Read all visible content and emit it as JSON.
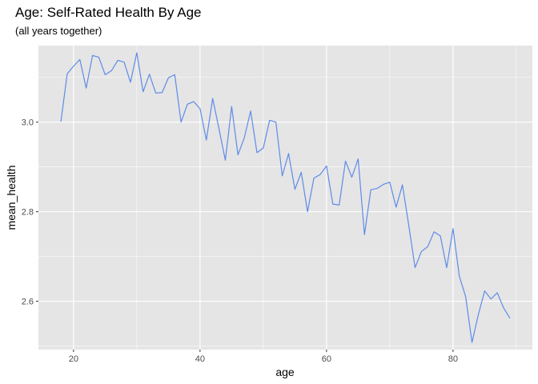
{
  "chart_data": {
    "type": "line",
    "title": "Age: Self-Rated Health By Age",
    "subtitle": "(all years together)",
    "xlabel": "age",
    "ylabel": "mean_health",
    "xlim": [
      14.45,
      92.55
    ],
    "ylim": [
      2.492,
      3.171
    ],
    "x_ticks": [
      20,
      40,
      60,
      80
    ],
    "x_minor_ticks": [
      30,
      50,
      70,
      90
    ],
    "y_ticks": [
      2.6,
      2.8,
      3.0
    ],
    "y_tick_labels": [
      "2.6",
      "2.8",
      "3.0"
    ],
    "y_minor_ticks": [
      2.5,
      2.7,
      2.9,
      3.1
    ],
    "grid": true,
    "legend": "none",
    "colors": {
      "line": "#5d8be8",
      "panel": "#e5e5e5",
      "grid": "#ffffff",
      "tick_text": "#4d4d4d"
    },
    "series": [
      {
        "x": [
          18,
          19,
          20,
          21,
          22,
          23,
          24,
          25,
          26,
          27,
          28,
          29,
          30,
          31,
          32,
          33,
          34,
          35,
          36,
          37,
          38,
          39,
          40,
          41,
          42,
          43,
          44,
          45,
          46,
          47,
          48,
          49,
          50,
          51,
          52,
          53,
          54,
          55,
          56,
          57,
          58,
          59,
          60,
          61,
          62,
          63,
          64,
          65,
          66,
          67,
          68,
          69,
          70,
          71,
          72,
          73,
          74,
          75,
          76,
          77,
          78,
          79,
          80,
          81,
          82,
          83,
          84,
          85,
          86,
          87,
          88,
          89
        ],
        "y": [
          3.001,
          3.108,
          3.125,
          3.14,
          3.076,
          3.149,
          3.145,
          3.106,
          3.115,
          3.138,
          3.134,
          3.089,
          3.155,
          3.068,
          3.107,
          3.065,
          3.066,
          3.099,
          3.106,
          3.0,
          3.04,
          3.046,
          3.03,
          2.96,
          3.053,
          2.985,
          2.915,
          3.035,
          2.927,
          2.965,
          3.025,
          2.932,
          2.942,
          3.004,
          3.0,
          2.88,
          2.93,
          2.85,
          2.888,
          2.8,
          2.875,
          2.883,
          2.902,
          2.817,
          2.815,
          2.913,
          2.877,
          2.918,
          2.749,
          2.849,
          2.852,
          2.861,
          2.866,
          2.81,
          2.86,
          2.77,
          2.675,
          2.711,
          2.722,
          2.755,
          2.746,
          2.675,
          2.762,
          2.656,
          2.61,
          2.508,
          2.57,
          2.623,
          2.605,
          2.619,
          2.585,
          2.562
        ]
      }
    ]
  }
}
